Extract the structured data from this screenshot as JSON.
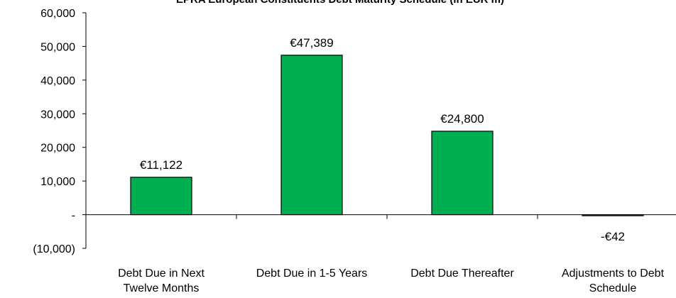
{
  "chart_data": {
    "type": "bar",
    "title": "EPRA European Constituents Debt Maturity Schedule (in EUR m)",
    "xlabel": "",
    "ylabel": "",
    "categories": [
      [
        "Debt Due in Next",
        "Twelve Months"
      ],
      [
        "Debt Due in 1-5 Years"
      ],
      [
        "Debt Due Thereafter"
      ],
      [
        "Adjustments to Debt",
        "Schedule"
      ]
    ],
    "values": [
      11122,
      47389,
      24800,
      -42
    ],
    "data_labels": [
      "€11,122",
      "€47,389",
      "€24,800",
      "-€42"
    ],
    "ylim": [
      -10000,
      60000
    ],
    "yticks": [
      -10000,
      0,
      10000,
      20000,
      30000,
      40000,
      50000,
      60000
    ],
    "ytick_labels": [
      "(10,000)",
      "-",
      "10,000",
      "20,000",
      "30,000",
      "40,000",
      "50,000",
      "60,000"
    ],
    "bar_color": "#00b050",
    "grid": false,
    "legend": "none"
  }
}
